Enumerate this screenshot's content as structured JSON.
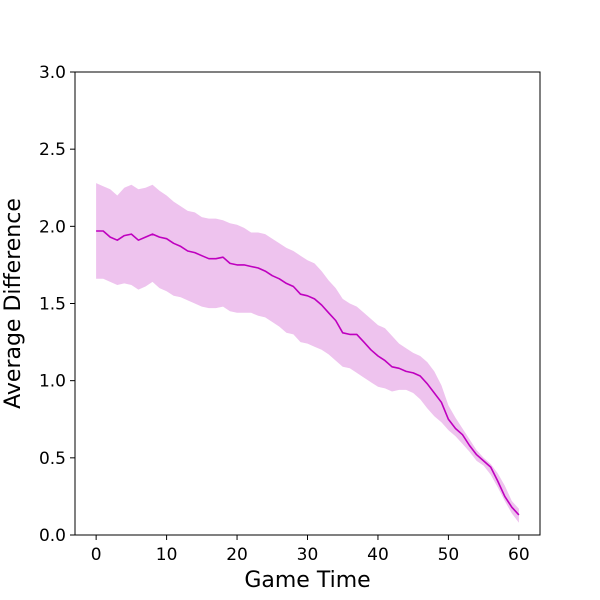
{
  "chart_data": {
    "type": "line",
    "xlabel": "Game Time",
    "ylabel": "Average Difference",
    "xlim": [
      -3,
      63
    ],
    "ylim": [
      0,
      3.0
    ],
    "x_ticks": [
      0,
      10,
      20,
      30,
      40,
      50,
      60
    ],
    "y_ticks": [
      "0.0",
      "0.5",
      "1.0",
      "1.5",
      "2.0",
      "2.5",
      "3.0"
    ],
    "grid": false,
    "line_color": "#bf00bf",
    "band_color": "#eec3ee",
    "series": [
      {
        "x": [
          0,
          1,
          2,
          3,
          4,
          5,
          6,
          7,
          8,
          9,
          10,
          11,
          12,
          13,
          14,
          15,
          16,
          17,
          18,
          19,
          20,
          21,
          22,
          23,
          24,
          25,
          26,
          27,
          28,
          29,
          30,
          31,
          32,
          33,
          34,
          35,
          36,
          37,
          38,
          39,
          40,
          41,
          42,
          43,
          44,
          45,
          46,
          47,
          48,
          49,
          50,
          51,
          52,
          53,
          54,
          55,
          56,
          57,
          58,
          59,
          60
        ],
        "values": [
          1.97,
          1.97,
          1.93,
          1.91,
          1.94,
          1.95,
          1.91,
          1.93,
          1.95,
          1.93,
          1.92,
          1.89,
          1.87,
          1.84,
          1.83,
          1.81,
          1.79,
          1.79,
          1.8,
          1.76,
          1.75,
          1.75,
          1.74,
          1.73,
          1.71,
          1.68,
          1.66,
          1.63,
          1.61,
          1.56,
          1.55,
          1.53,
          1.49,
          1.44,
          1.39,
          1.31,
          1.3,
          1.3,
          1.25,
          1.2,
          1.16,
          1.13,
          1.09,
          1.08,
          1.06,
          1.05,
          1.03,
          0.98,
          0.92,
          0.86,
          0.75,
          0.69,
          0.65,
          0.58,
          0.52,
          0.48,
          0.44,
          0.35,
          0.25,
          0.18,
          0.13
        ],
        "lower": [
          1.66,
          1.66,
          1.64,
          1.62,
          1.63,
          1.62,
          1.59,
          1.61,
          1.64,
          1.6,
          1.58,
          1.55,
          1.54,
          1.52,
          1.5,
          1.48,
          1.47,
          1.47,
          1.48,
          1.45,
          1.44,
          1.44,
          1.44,
          1.42,
          1.41,
          1.38,
          1.35,
          1.31,
          1.3,
          1.25,
          1.24,
          1.22,
          1.2,
          1.17,
          1.13,
          1.09,
          1.08,
          1.05,
          1.02,
          0.99,
          0.96,
          0.95,
          0.93,
          0.94,
          0.94,
          0.92,
          0.88,
          0.82,
          0.77,
          0.73,
          0.68,
          0.64,
          0.59,
          0.54,
          0.48,
          0.45,
          0.39,
          0.31,
          0.22,
          0.14,
          0.08
        ],
        "upper": [
          2.28,
          2.26,
          2.24,
          2.2,
          2.25,
          2.27,
          2.24,
          2.25,
          2.27,
          2.23,
          2.2,
          2.16,
          2.13,
          2.1,
          2.09,
          2.06,
          2.05,
          2.05,
          2.04,
          2.02,
          2.01,
          1.99,
          1.96,
          1.96,
          1.95,
          1.92,
          1.89,
          1.86,
          1.84,
          1.81,
          1.78,
          1.76,
          1.71,
          1.65,
          1.6,
          1.53,
          1.5,
          1.48,
          1.44,
          1.4,
          1.36,
          1.34,
          1.29,
          1.24,
          1.21,
          1.18,
          1.16,
          1.12,
          1.06,
          0.97,
          0.84,
          0.76,
          0.69,
          0.62,
          0.55,
          0.5,
          0.46,
          0.4,
          0.32,
          0.22,
          0.17
        ]
      }
    ]
  }
}
